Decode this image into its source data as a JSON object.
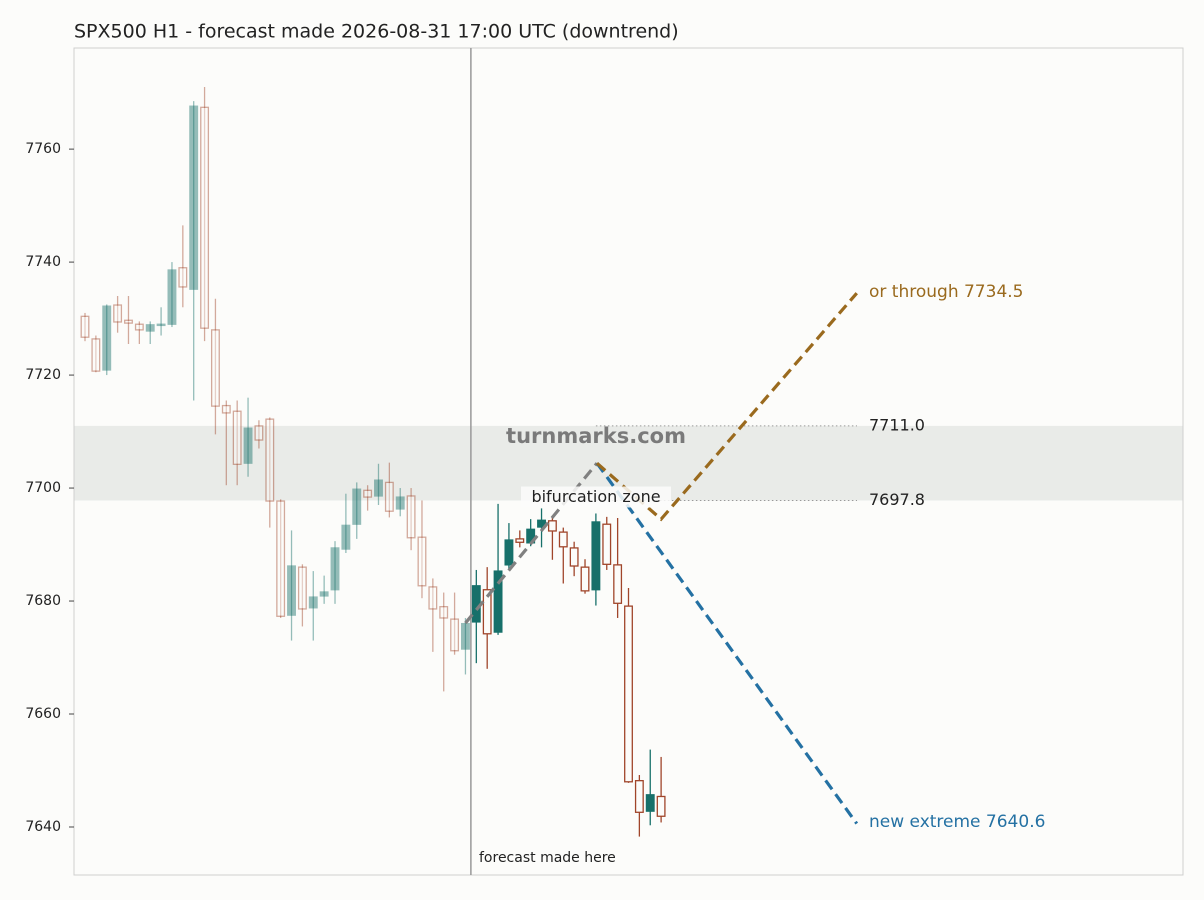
{
  "chart_data": {
    "type": "candlestick",
    "title": "SPX500 H1 - forecast made 2026-08-31 17:00 UTC (downtrend)",
    "ylim": [
      7631.5,
      7777.9
    ],
    "yticks": [
      7640,
      7660,
      7680,
      7700,
      7720,
      7740,
      7760
    ],
    "up_color": "#17706a",
    "down_color": "#a0452a",
    "open": [
      7730.4,
      7726.4,
      7720.9,
      7732.4,
      7729.7,
      7729.0,
      7727.8,
      7728.8,
      7729.0,
      7739.0,
      7735.2,
      7767.4,
      7728.0,
      7714.6,
      7713.6,
      7704.4,
      7711.0,
      7712.2,
      7697.7,
      7677.5,
      7686.0,
      7678.8,
      7680.9,
      7682.0,
      7689.2,
      7693.6,
      7699.6,
      7698.6,
      7701.0,
      7696.3,
      7698.6,
      7691.3,
      7682.5,
      7679.0,
      7676.8,
      7671.5,
      7676.3,
      7682.0,
      7674.5,
      7686.4,
      7691.0,
      7690.3,
      7693.1,
      7694.2,
      7692.2,
      7689.4,
      7686.0,
      7682.0,
      7693.6,
      7686.4,
      7679.1,
      7648.2,
      7642.8,
      7645.4
    ],
    "high": [
      7731.0,
      7727.0,
      7732.5,
      7734.0,
      7734.0,
      7729.5,
      7729.5,
      7732.0,
      7740.0,
      7746.5,
      7768.5,
      7771.0,
      7733.5,
      7715.5,
      7715.5,
      7716.0,
      7712.0,
      7712.5,
      7698.0,
      7692.5,
      7686.5,
      7685.3,
      7684.5,
      7690.6,
      7699.0,
      7701.0,
      7700.5,
      7704.3,
      7704.5,
      7700.0,
      7700.0,
      7697.8,
      7684.0,
      7681.5,
      7681.5,
      7677.0,
      7685.5,
      7686.0,
      7697.2,
      7693.8,
      7692.5,
      7694.5,
      7696.4,
      7695.0,
      7693.0,
      7690.5,
      7687.4,
      7695.5,
      7694.9,
      7694.7,
      7682.3,
      7649.2,
      7653.7,
      7652.4
    ],
    "low": [
      7726.0,
      7720.5,
      7720.0,
      7727.5,
      7725.5,
      7725.5,
      7725.5,
      7727.0,
      7728.5,
      7732.0,
      7715.5,
      7726.0,
      7709.5,
      7700.5,
      7700.5,
      7702.0,
      7707.0,
      7693.0,
      7677.0,
      7673.0,
      7675.5,
      7673.0,
      7679.5,
      7679.5,
      7688.5,
      7691.0,
      7696.0,
      7697.0,
      7694.8,
      7695.0,
      7689.0,
      7680.5,
      7671.0,
      7664.0,
      7670.5,
      7667.0,
      7669.0,
      7668.0,
      7674.0,
      7685.5,
      7689.5,
      7689.7,
      7689.5,
      7687.3,
      7683.1,
      7684.4,
      7681.3,
      7679.2,
      7685.5,
      7677.0,
      7647.8,
      7638.3,
      7640.3,
      7640.8
    ],
    "close": [
      7726.7,
      7720.7,
      7732.2,
      7729.4,
      7729.2,
      7728.0,
      7728.9,
      7729.0,
      7738.6,
      7735.6,
      7767.6,
      7728.3,
      7714.5,
      7713.3,
      7704.2,
      7710.6,
      7708.5,
      7697.7,
      7677.3,
      7686.2,
      7678.6,
      7680.7,
      7681.6,
      7689.4,
      7693.4,
      7699.8,
      7698.4,
      7701.4,
      7695.9,
      7698.4,
      7691.2,
      7682.7,
      7678.6,
      7677.0,
      7671.2,
      7676.0,
      7682.7,
      7674.2,
      7685.3,
      7690.8,
      7690.4,
      7692.7,
      7694.3,
      7692.4,
      7689.6,
      7686.2,
      7681.8,
      7694.0,
      7686.5,
      7679.6,
      7648.0,
      7642.6,
      7645.7,
      7641.9
    ],
    "zone": {
      "label": "bifurcation zone",
      "range": [
        7697.8,
        7711.0
      ]
    },
    "levels": [
      {
        "value": 7711.0,
        "label": "7711.0"
      },
      {
        "value": 7697.8,
        "label": "7697.8"
      }
    ],
    "forecast_paths": [
      {
        "color": "#808080",
        "values": [
          7676.1,
          7704.4
        ]
      },
      {
        "color": "#2471a3",
        "values": [
          7704.4,
          7640.6
        ]
      },
      {
        "color": "#9a6a1e",
        "values": [
          7704.4,
          7694.5,
          7734.5
        ]
      }
    ],
    "annotations": {
      "up": "or through 7734.5",
      "down": "new extreme 7640.6",
      "forecast": "forecast made here",
      "watermark": "turnmarks.com"
    }
  }
}
